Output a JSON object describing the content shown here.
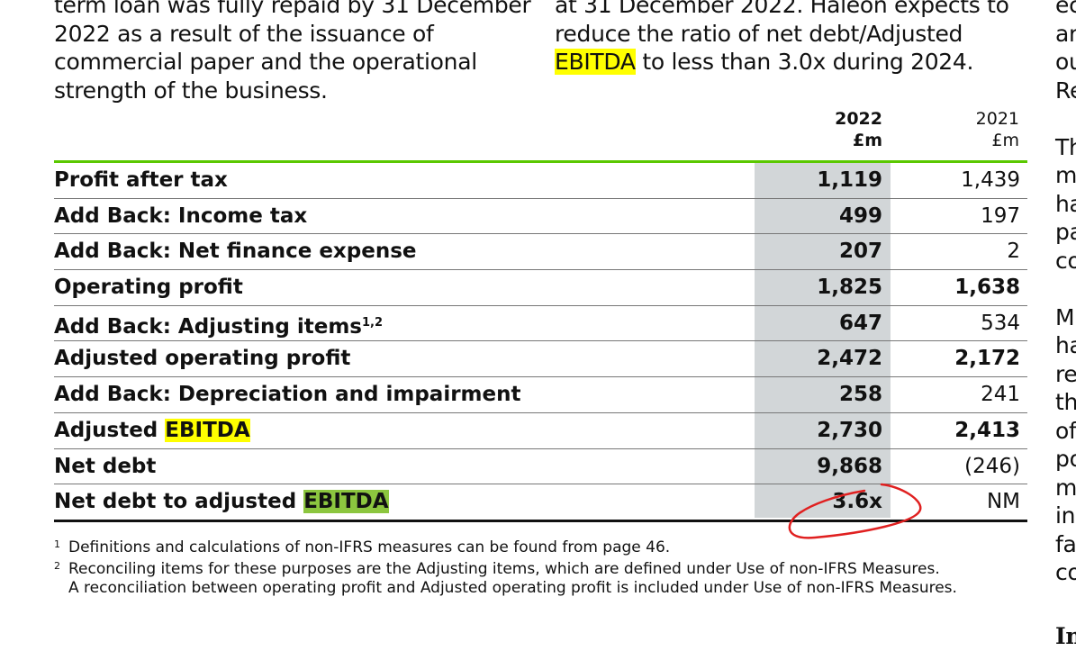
{
  "column1": [
    "term loan was fully repaid by 31 December",
    "2022 as a result of the issuance of",
    "commercial paper and the operational",
    "strength of the business."
  ],
  "column2": {
    "line1": "at 31 December 2022. Haleon expects to",
    "line2": "reduce the ratio of net debt/Adjusted",
    "line3_highlight": "EBITDA",
    "line3_rest": " to less than 3.0x during 2024."
  },
  "column3": [
    "ec",
    "ar",
    "ou",
    "Re",
    "",
    "Th",
    "m",
    "ha",
    "pa",
    "co",
    "",
    "M",
    "ha",
    "re",
    "th",
    "of",
    "po",
    "m",
    "in",
    "fa",
    "co",
    "",
    "In"
  ],
  "table": {
    "headers": {
      "y2022": "2022",
      "u2022": "£m",
      "y2021": "2021",
      "u2021": "£m"
    },
    "rows": [
      {
        "label": "Profit after tax",
        "v2022": "1,119",
        "v2021": "1,439"
      },
      {
        "label": "Add Back: Income tax",
        "v2022": "499",
        "v2021": "197"
      },
      {
        "label": "Add Back: Net finance expense",
        "v2022": "207",
        "v2021": "2"
      },
      {
        "label": "Operating profit",
        "v2022": "1,825",
        "v2021": "1,638"
      },
      {
        "label": "Add Back: Adjusting items",
        "sup": "1,2",
        "v2022": "647",
        "v2021": "534"
      },
      {
        "label": "Adjusted operating profit",
        "v2022": "2,472",
        "v2021": "2,172"
      },
      {
        "label": "Add Back: Depreciation and impairment",
        "v2022": "258",
        "v2021": "241"
      },
      {
        "label": "Adjusted ",
        "highlight": "EBITDA",
        "v2022": "2,730",
        "v2021": "2,413"
      },
      {
        "label": "Net debt",
        "v2022": "9,868",
        "v2021": "(246)"
      },
      {
        "label": "Net debt to adjusted ",
        "highlight": "EBITDA",
        "v2022": "3.6x",
        "v2021": "NM"
      }
    ]
  },
  "footnotes": {
    "n1": "1",
    "t1": "Definitions and calculations of non-IFRS measures can be found from page 46.",
    "n2": "2",
    "t2": "Reconciling items for these purposes are the Adjusting items, which are defined under Use of non-IFRS Measures.",
    "t3": "A reconciliation between operating profit and Adjusted operating profit is included under Use of non-IFRS Measures."
  },
  "colors": {
    "highlight_yellow": "#ffff00",
    "highlight_green": "#8cc63f",
    "rule_green": "#5ac800",
    "annotation_red": "#e02020",
    "column_gray": "#d2d6d8"
  }
}
